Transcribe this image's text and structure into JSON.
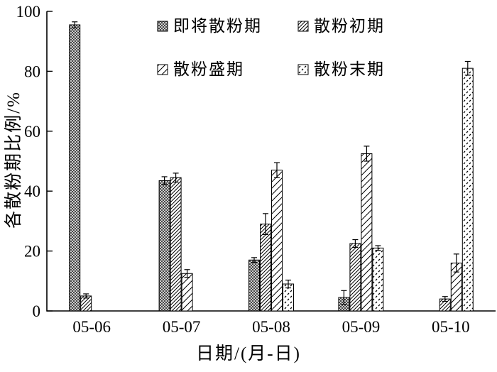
{
  "chart_data": {
    "type": "bar",
    "title": "",
    "xlabel": "日期/(月-日)",
    "ylabel": "各散粉期比例/%",
    "ylim": [
      0,
      100
    ],
    "yticks": [
      0,
      20,
      40,
      60,
      80,
      100
    ],
    "categories": [
      "05-06",
      "05-07",
      "05-08",
      "05-09",
      "05-10"
    ],
    "series": [
      {
        "name": "即将散粉期",
        "pattern": "crosshatch",
        "values": [
          95.5,
          43.5,
          17,
          4.5,
          0
        ],
        "errors": [
          1,
          1.3,
          0.8,
          2.3,
          0
        ]
      },
      {
        "name": "散粉初期",
        "pattern": "diag-dense",
        "values": [
          5,
          44.5,
          29,
          22.5,
          4
        ],
        "errors": [
          0.7,
          1.5,
          3.5,
          1.3,
          0.8
        ]
      },
      {
        "name": "散粉盛期",
        "pattern": "diag-sparse",
        "values": [
          0,
          12.5,
          47,
          52.5,
          16
        ],
        "errors": [
          0,
          1.3,
          2.5,
          2.5,
          3
        ]
      },
      {
        "name": "散粉末期",
        "pattern": "dash-speckle",
        "values": [
          0,
          0,
          9,
          21,
          81
        ],
        "errors": [
          0,
          0,
          1.3,
          0.8,
          2.3
        ]
      }
    ],
    "legend_position": "top-inside",
    "grid": false,
    "bar_outline_color": "#000000",
    "axis_color": "#000000"
  }
}
